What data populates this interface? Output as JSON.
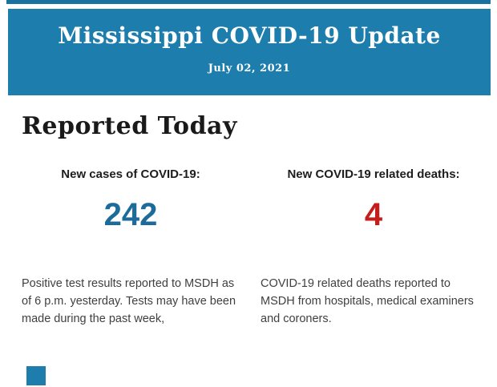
{
  "colors": {
    "banner_blue": "#1d7dad",
    "strip_blue": "#1a739f",
    "banner_text": "#ffffff",
    "heading_black": "#1a1a1a",
    "label_dark": "#1d1d1d",
    "cases_blue": "#1d6b9a",
    "deaths_red": "#c51c1c",
    "body_gray": "#404040"
  },
  "banner": {
    "title": "Mississippi COVID-19 Update",
    "date": "July 02, 2021"
  },
  "section": {
    "heading": "Reported Today"
  },
  "stats": {
    "cases": {
      "label": "New cases of COVID-19:",
      "value": "242",
      "description": "Positive test results reported to MSDH as of 6 p.m. yesterday. Tests may have been made during the past week,"
    },
    "deaths": {
      "label": "New COVID-19 related deaths:",
      "value": "4",
      "description": "COVID-19 related deaths reported to MSDH from hospitals, medical examiners and coroners."
    }
  }
}
